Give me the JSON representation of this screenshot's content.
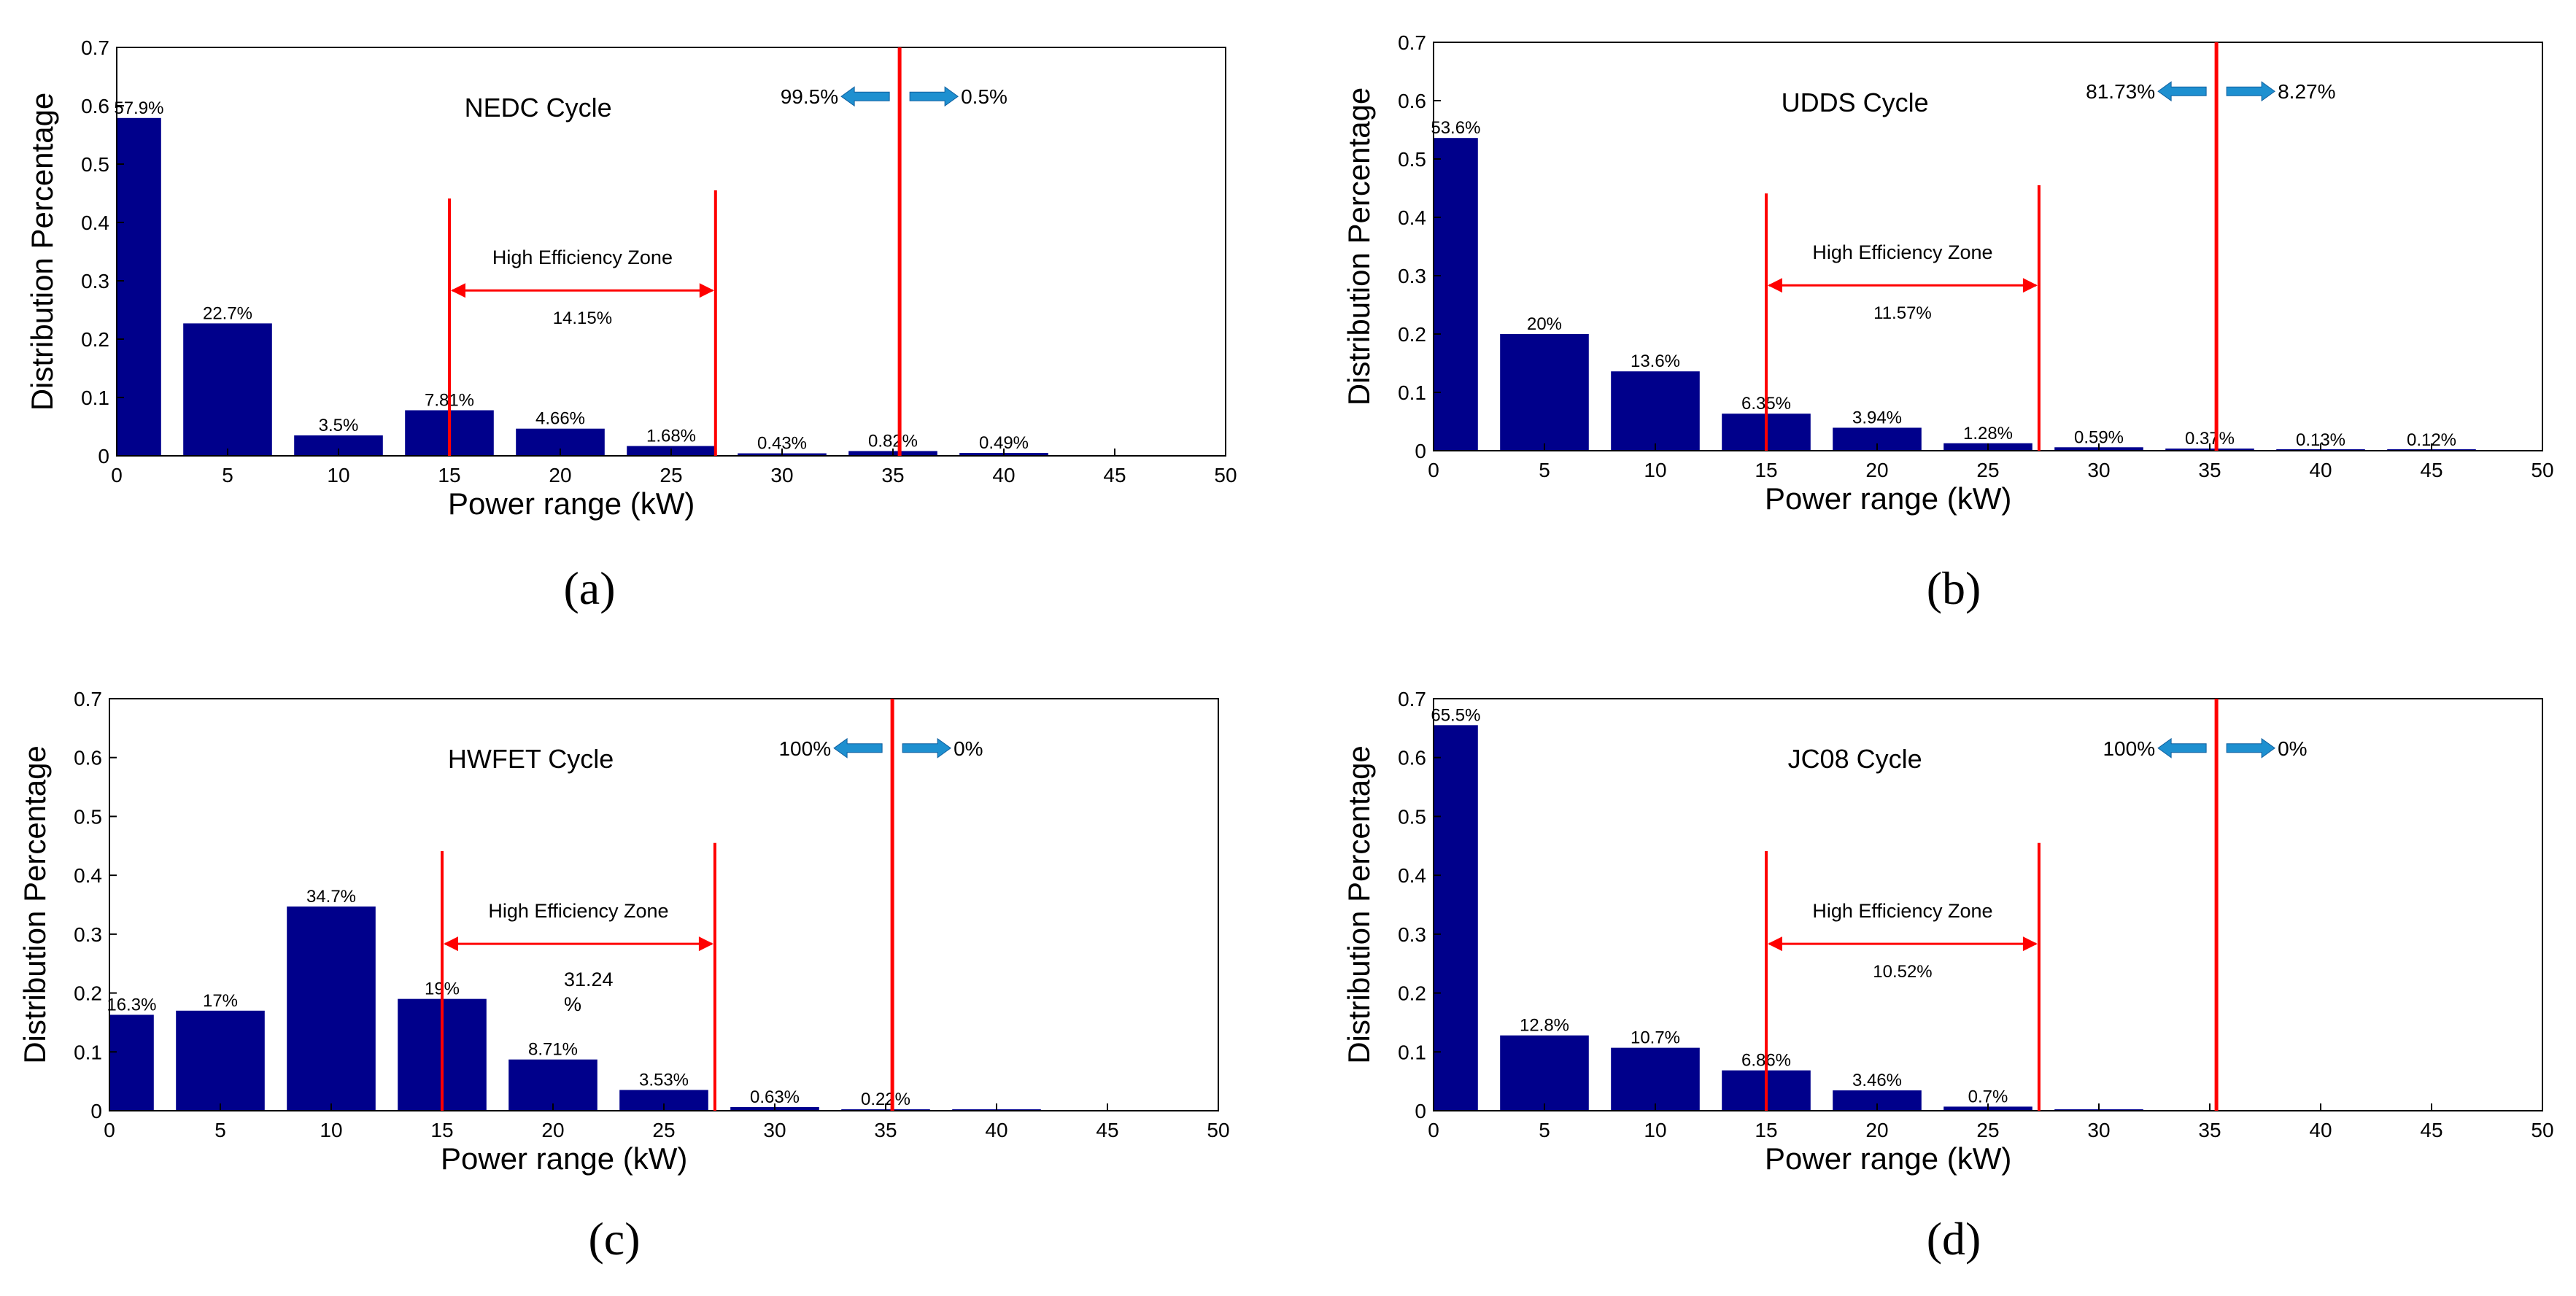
{
  "colors": {
    "bar": "#00008B",
    "marker": "#FF0000",
    "arrow": "#1E90D0",
    "axis": "#000000"
  },
  "chart_data": [
    {
      "type": "bar",
      "caption": "(a)",
      "title": "NEDC Cycle",
      "xlabel": "Power range (kW)",
      "ylabel": "Distribution Percentage",
      "xlim": [
        0,
        50
      ],
      "ylim": [
        0,
        0.7
      ],
      "xticks": [
        "0",
        "5",
        "10",
        "15",
        "20",
        "25",
        "30",
        "35",
        "40",
        "45",
        "50"
      ],
      "yticks": [
        "0",
        "0.1",
        "0.2",
        "0.3",
        "0.4",
        "0.5",
        "0.6",
        "0.7"
      ],
      "categories": [
        "0",
        "5",
        "10",
        "15",
        "20",
        "25",
        "30",
        "35",
        "40",
        "45"
      ],
      "values": [
        0.579,
        0.227,
        0.035,
        0.0781,
        0.0466,
        0.0168,
        0.0043,
        0.0082,
        0.0049,
        0
      ],
      "value_labels": [
        "57.9%",
        "22.7%",
        "3.5%",
        "7.81%",
        "4.66%",
        "1.68%",
        "0.43%",
        "0.82%",
        "0.49%",
        ""
      ],
      "high_efficiency_zone": {
        "label": "High Efficiency Zone",
        "from": 15,
        "to": 27,
        "percent": "14.15%"
      },
      "split": {
        "at": 35.3,
        "left": "99.5%",
        "right": "0.5%"
      }
    },
    {
      "type": "bar",
      "caption": "(b)",
      "title": "UDDS Cycle",
      "xlabel": "Power range (kW)",
      "ylabel": "Distribution Percentage",
      "xlim": [
        0,
        50
      ],
      "ylim": [
        0,
        0.7
      ],
      "xticks": [
        "0",
        "5",
        "10",
        "15",
        "20",
        "25",
        "30",
        "35",
        "40",
        "45",
        "50"
      ],
      "yticks": [
        "0",
        "0.1",
        "0.2",
        "0.3",
        "0.4",
        "0.5",
        "0.6",
        "0.7"
      ],
      "categories": [
        "0",
        "5",
        "10",
        "15",
        "20",
        "25",
        "30",
        "35",
        "40",
        "45"
      ],
      "values": [
        0.536,
        0.2,
        0.136,
        0.0635,
        0.0394,
        0.0128,
        0.0059,
        0.0037,
        0.0013,
        0.0012
      ],
      "value_labels": [
        "53.6%",
        "20%",
        "13.6%",
        "6.35%",
        "3.94%",
        "1.28%",
        "0.59%",
        "0.37%",
        "0.13%",
        "0.12%"
      ],
      "high_efficiency_zone": {
        "label": "High Efficiency Zone",
        "from": 15,
        "to": 27.3,
        "percent": "11.57%"
      },
      "split": {
        "at": 35.3,
        "left": "81.73%",
        "right": "8.27%"
      }
    },
    {
      "type": "bar",
      "caption": "(c)",
      "title": "HWFET Cycle",
      "xlabel": "Power range (kW)",
      "ylabel": "Distribution Percentage",
      "xlim": [
        0,
        50
      ],
      "ylim": [
        0,
        0.7
      ],
      "xticks": [
        "0",
        "5",
        "10",
        "15",
        "20",
        "25",
        "30",
        "35",
        "40",
        "45",
        "50"
      ],
      "yticks": [
        "0",
        "0.1",
        "0.2",
        "0.3",
        "0.4",
        "0.5",
        "0.6",
        "0.7"
      ],
      "categories": [
        "0",
        "5",
        "10",
        "15",
        "20",
        "25",
        "30",
        "35",
        "40",
        "45"
      ],
      "values": [
        0.163,
        0.17,
        0.347,
        0.19,
        0.0871,
        0.0353,
        0.0063,
        0.0022,
        0.001,
        0
      ],
      "value_labels": [
        "16.3%",
        "17%",
        "34.7%",
        "19%",
        "8.71%",
        "3.53%",
        "0.63%",
        "0.22%",
        "",
        ""
      ],
      "high_efficiency_zone": {
        "label": "High Efficiency Zone",
        "from": 15,
        "to": 27.3,
        "percent_lines": [
          "31.24",
          "%"
        ]
      },
      "split": {
        "at": 35.3,
        "left": "100%",
        "right": "0%"
      }
    },
    {
      "type": "bar",
      "caption": "(d)",
      "title": "JC08 Cycle",
      "xlabel": "Power range (kW)",
      "ylabel": "Distribution Percentage",
      "xlim": [
        0,
        50
      ],
      "ylim": [
        0,
        0.7
      ],
      "xticks": [
        "0",
        "5",
        "10",
        "15",
        "20",
        "25",
        "30",
        "35",
        "40",
        "45",
        "50"
      ],
      "yticks": [
        "0",
        "0.1",
        "0.2",
        "0.3",
        "0.4",
        "0.5",
        "0.6",
        "0.7"
      ],
      "categories": [
        "0",
        "5",
        "10",
        "15",
        "20",
        "25",
        "30",
        "35",
        "40",
        "45"
      ],
      "values": [
        0.655,
        0.128,
        0.107,
        0.0686,
        0.0346,
        0.007,
        0.001,
        0,
        0,
        0
      ],
      "value_labels": [
        "65.5%",
        "12.8%",
        "10.7%",
        "6.86%",
        "3.46%",
        "0.7%",
        "",
        "",
        "",
        ""
      ],
      "high_efficiency_zone": {
        "label": "High Efficiency Zone",
        "from": 15,
        "to": 27.3,
        "percent": "10.52%"
      },
      "split": {
        "at": 35.3,
        "left": "100%",
        "right": "0%"
      }
    }
  ]
}
